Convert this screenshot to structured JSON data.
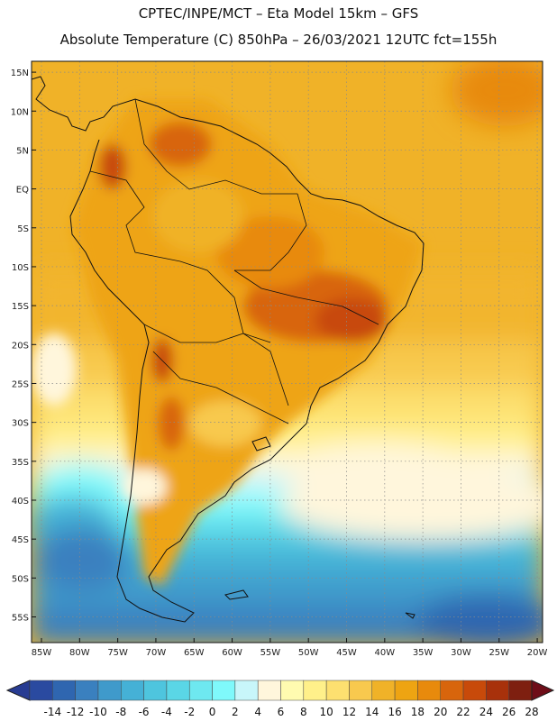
{
  "title_line1": "CPTEC/INPE/MCT –  Eta Model 15km – GFS",
  "title_line2": "Absolute Temperature (C) 850hPa – 26/03/2021 12UTC fct=155h",
  "lat_labels": [
    "15N",
    "10N",
    "5N",
    "EQ",
    "5S",
    "10S",
    "15S",
    "20S",
    "25S",
    "30S",
    "35S",
    "40S",
    "45S",
    "50S",
    "55S"
  ],
  "lon_labels": [
    "85W",
    "80W",
    "75W",
    "70W",
    "65W",
    "60W",
    "55W",
    "50W",
    "45W",
    "40W",
    "35W",
    "30W",
    "25W",
    "20W"
  ],
  "lat_values": [
    15,
    10,
    5,
    0,
    -5,
    -10,
    -15,
    -20,
    -25,
    -30,
    -35,
    -40,
    -45,
    -50,
    -55
  ],
  "lon_values": [
    -85,
    -80,
    -75,
    -70,
    -65,
    -60,
    -55,
    -50,
    -45,
    -40,
    -35,
    -30,
    -25,
    -20
  ],
  "colorbar": {
    "labels": [
      "-14",
      "-12",
      "-10",
      "-8",
      "-6",
      "-4",
      "-2",
      "0",
      "2",
      "4",
      "6",
      "8",
      "10",
      "12",
      "14",
      "16",
      "18",
      "20",
      "22",
      "24",
      "26",
      "28"
    ],
    "colors": [
      "#2a4aa0",
      "#2f66b0",
      "#3a80bf",
      "#3f9acb",
      "#45b1d6",
      "#4ec5de",
      "#5ad6e6",
      "#6ee8f0",
      "#7ff9fb",
      "#c8f6fa",
      "#fff6dc",
      "#fffbb0",
      "#fff08a",
      "#fde070",
      "#f8c94e",
      "#f0b228",
      "#eea412",
      "#e88a0c",
      "#d8650c",
      "#c84a0a",
      "#a8310b",
      "#7e1f10"
    ],
    "low_end_color": "#283c92",
    "high_end_color": "#6e0d18"
  }
}
